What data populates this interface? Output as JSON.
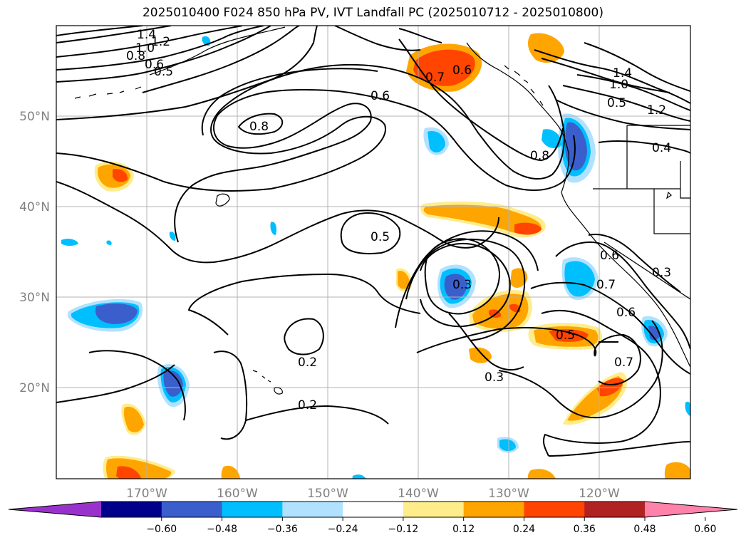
{
  "title": "2025010400 F024 850 hPa PV, IVT Landfall PC (2025010712 - 2025010800)",
  "lon_labels": [
    "170°W",
    "160°W",
    "150°W",
    "140°W",
    "130°W",
    "120°W"
  ],
  "lat_labels": [
    "50°N",
    "40°N",
    "30°N",
    "20°N"
  ],
  "colorbar": {
    "colors": [
      "#9932cc",
      "#00008b",
      "#3a5fcd",
      "#00bfff",
      "#b0e2ff",
      "#ffffff",
      "#ffec8b",
      "#ffa500",
      "#ff4500",
      "#b22222",
      "#ff82ab"
    ],
    "tick_labels": [
      "−0.60",
      "−0.48",
      "−0.36",
      "−0.24",
      "−0.12",
      "0.12",
      "0.24",
      "0.36",
      "0.48",
      "0.60"
    ]
  },
  "contour_labels": [
    "1.4",
    "1.2",
    "1.0",
    "0.8",
    "0.6",
    "0.5",
    "0.7",
    "0.6",
    "0.6",
    "0.8",
    "0.8",
    "1.4",
    "1.0",
    "0.5",
    "1.2",
    "0.4",
    "0.5",
    "0.3",
    "0.6",
    "0.3",
    "0.7",
    "0.6",
    "0.5",
    "0.7",
    "0.2",
    "0.2",
    "0.3"
  ]
}
